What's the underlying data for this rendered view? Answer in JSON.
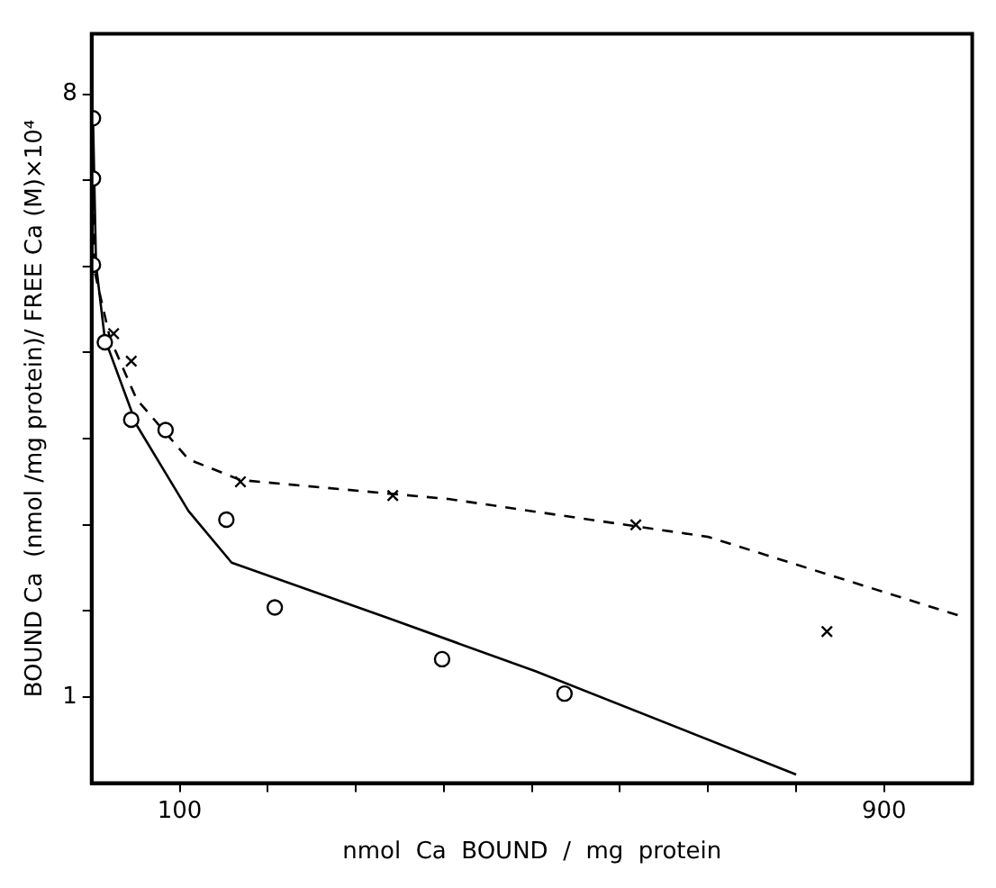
{
  "chart_data": {
    "type": "scatter",
    "xlabel": "nmol  Ca  BOUND  /  mg  protein",
    "ylabel": "BOUND Ca  (nmol /mg protein)/ FREE Ca (M)×10⁴",
    "xlim": [
      0,
      1000
    ],
    "ylim": [
      0,
      8.7
    ],
    "xticks": [
      {
        "value": 100,
        "label": "100"
      },
      {
        "value": 200,
        "label": null
      },
      {
        "value": 300,
        "label": null
      },
      {
        "value": 400,
        "label": null
      },
      {
        "value": 500,
        "label": null
      },
      {
        "value": 600,
        "label": null
      },
      {
        "value": 700,
        "label": null
      },
      {
        "value": 800,
        "label": null
      },
      {
        "value": 900,
        "label": "900"
      }
    ],
    "yticks": [
      {
        "value": 1,
        "label": "1"
      },
      {
        "value": 2,
        "label": null
      },
      {
        "value": 3,
        "label": null
      },
      {
        "value": 4,
        "label": null
      },
      {
        "value": 5,
        "label": null
      },
      {
        "value": 6,
        "label": null
      },
      {
        "value": 7,
        "label": null
      },
      {
        "value": 8,
        "label": "8"
      }
    ],
    "legend": false,
    "series": [
      {
        "marker": "circle",
        "color": "#000000",
        "x": [
          1.5,
          1.5,
          1.5,
          15,
          45,
          84,
          153,
          208,
          398,
          537
        ],
        "values": [
          7.72,
          7.02,
          6.02,
          5.12,
          4.22,
          4.1,
          3.06,
          2.04,
          1.44,
          1.04
        ]
      },
      {
        "marker": "cross",
        "color": "#000000",
        "x": [
          25,
          45,
          169,
          342,
          618,
          835
        ],
        "values": [
          5.22,
          4.9,
          3.5,
          3.34,
          3.0,
          1.76
        ]
      },
      {
        "type": "line",
        "marker": "none",
        "line_style": "solid",
        "color": "#000000",
        "x": [
          1.5,
          5,
          15,
          51,
          110,
          159,
          336,
          504,
          800
        ],
        "values": [
          7.76,
          6.02,
          5.16,
          4.16,
          3.16,
          2.56,
          1.92,
          1.3,
          0.1
        ]
      },
      {
        "type": "line",
        "marker": "none",
        "line_style": "dashed",
        "color": "#000000",
        "x": [
          0,
          3,
          21,
          51,
          110,
          169,
          405,
          700,
          993
        ],
        "values": [
          7.76,
          5.96,
          5.16,
          4.46,
          3.76,
          3.52,
          3.3,
          2.86,
          1.92
        ]
      }
    ]
  }
}
